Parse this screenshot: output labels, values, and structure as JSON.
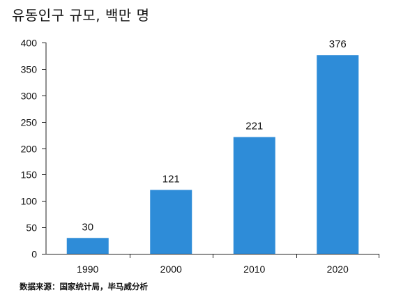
{
  "title": "유동인구 규모, 백만 명",
  "source": "数据来源：国家统计局，毕马威分析",
  "colors": {
    "bar": "#2E8CD8",
    "axis": "#222222",
    "text": "#111111"
  },
  "chart_data": {
    "type": "bar",
    "title": "유동인구 규모, 백만 명",
    "categories": [
      "1990",
      "2000",
      "2010",
      "2020"
    ],
    "values": [
      30,
      121,
      221,
      376
    ],
    "data_labels": [
      "30",
      "121",
      "221",
      "376"
    ],
    "y_ticks": [
      "0",
      "50",
      "100",
      "150",
      "200",
      "250",
      "300",
      "350",
      "400"
    ],
    "ylim": [
      0,
      400
    ],
    "xlabel": "",
    "ylabel": "",
    "grid": false,
    "legend": "none"
  }
}
